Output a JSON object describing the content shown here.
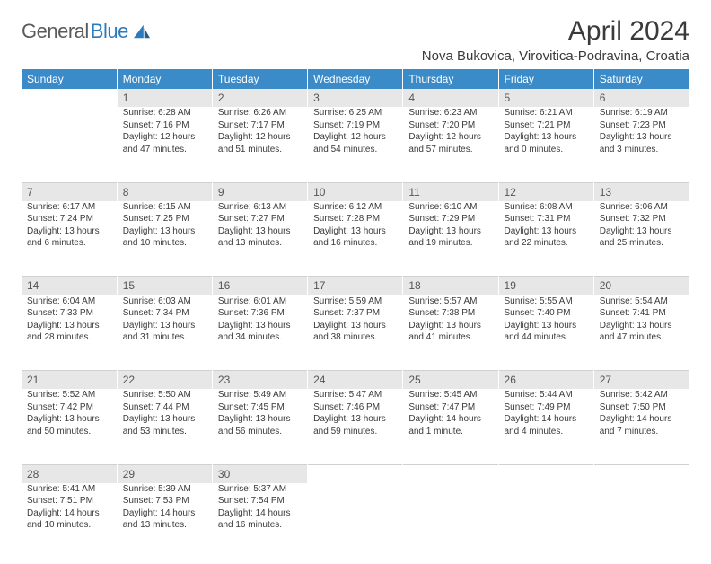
{
  "brand": {
    "name_gray": "General",
    "name_blue": "Blue"
  },
  "title": "April 2024",
  "location": "Nova Bukovica, Virovitica-Podravina, Croatia",
  "colors": {
    "header_bg": "#3b8bc9",
    "header_text": "#ffffff",
    "daynum_bg": "#e7e7e7",
    "text": "#3a3a3a",
    "logo_gray": "#5a5a5a",
    "logo_blue": "#2b7bbd"
  },
  "weekdays": [
    "Sunday",
    "Monday",
    "Tuesday",
    "Wednesday",
    "Thursday",
    "Friday",
    "Saturday"
  ],
  "weeks": [
    [
      null,
      {
        "n": "1",
        "sr": "Sunrise: 6:28 AM",
        "ss": "Sunset: 7:16 PM",
        "d1": "Daylight: 12 hours",
        "d2": "and 47 minutes."
      },
      {
        "n": "2",
        "sr": "Sunrise: 6:26 AM",
        "ss": "Sunset: 7:17 PM",
        "d1": "Daylight: 12 hours",
        "d2": "and 51 minutes."
      },
      {
        "n": "3",
        "sr": "Sunrise: 6:25 AM",
        "ss": "Sunset: 7:19 PM",
        "d1": "Daylight: 12 hours",
        "d2": "and 54 minutes."
      },
      {
        "n": "4",
        "sr": "Sunrise: 6:23 AM",
        "ss": "Sunset: 7:20 PM",
        "d1": "Daylight: 12 hours",
        "d2": "and 57 minutes."
      },
      {
        "n": "5",
        "sr": "Sunrise: 6:21 AM",
        "ss": "Sunset: 7:21 PM",
        "d1": "Daylight: 13 hours",
        "d2": "and 0 minutes."
      },
      {
        "n": "6",
        "sr": "Sunrise: 6:19 AM",
        "ss": "Sunset: 7:23 PM",
        "d1": "Daylight: 13 hours",
        "d2": "and 3 minutes."
      }
    ],
    [
      {
        "n": "7",
        "sr": "Sunrise: 6:17 AM",
        "ss": "Sunset: 7:24 PM",
        "d1": "Daylight: 13 hours",
        "d2": "and 6 minutes."
      },
      {
        "n": "8",
        "sr": "Sunrise: 6:15 AM",
        "ss": "Sunset: 7:25 PM",
        "d1": "Daylight: 13 hours",
        "d2": "and 10 minutes."
      },
      {
        "n": "9",
        "sr": "Sunrise: 6:13 AM",
        "ss": "Sunset: 7:27 PM",
        "d1": "Daylight: 13 hours",
        "d2": "and 13 minutes."
      },
      {
        "n": "10",
        "sr": "Sunrise: 6:12 AM",
        "ss": "Sunset: 7:28 PM",
        "d1": "Daylight: 13 hours",
        "d2": "and 16 minutes."
      },
      {
        "n": "11",
        "sr": "Sunrise: 6:10 AM",
        "ss": "Sunset: 7:29 PM",
        "d1": "Daylight: 13 hours",
        "d2": "and 19 minutes."
      },
      {
        "n": "12",
        "sr": "Sunrise: 6:08 AM",
        "ss": "Sunset: 7:31 PM",
        "d1": "Daylight: 13 hours",
        "d2": "and 22 minutes."
      },
      {
        "n": "13",
        "sr": "Sunrise: 6:06 AM",
        "ss": "Sunset: 7:32 PM",
        "d1": "Daylight: 13 hours",
        "d2": "and 25 minutes."
      }
    ],
    [
      {
        "n": "14",
        "sr": "Sunrise: 6:04 AM",
        "ss": "Sunset: 7:33 PM",
        "d1": "Daylight: 13 hours",
        "d2": "and 28 minutes."
      },
      {
        "n": "15",
        "sr": "Sunrise: 6:03 AM",
        "ss": "Sunset: 7:34 PM",
        "d1": "Daylight: 13 hours",
        "d2": "and 31 minutes."
      },
      {
        "n": "16",
        "sr": "Sunrise: 6:01 AM",
        "ss": "Sunset: 7:36 PM",
        "d1": "Daylight: 13 hours",
        "d2": "and 34 minutes."
      },
      {
        "n": "17",
        "sr": "Sunrise: 5:59 AM",
        "ss": "Sunset: 7:37 PM",
        "d1": "Daylight: 13 hours",
        "d2": "and 38 minutes."
      },
      {
        "n": "18",
        "sr": "Sunrise: 5:57 AM",
        "ss": "Sunset: 7:38 PM",
        "d1": "Daylight: 13 hours",
        "d2": "and 41 minutes."
      },
      {
        "n": "19",
        "sr": "Sunrise: 5:55 AM",
        "ss": "Sunset: 7:40 PM",
        "d1": "Daylight: 13 hours",
        "d2": "and 44 minutes."
      },
      {
        "n": "20",
        "sr": "Sunrise: 5:54 AM",
        "ss": "Sunset: 7:41 PM",
        "d1": "Daylight: 13 hours",
        "d2": "and 47 minutes."
      }
    ],
    [
      {
        "n": "21",
        "sr": "Sunrise: 5:52 AM",
        "ss": "Sunset: 7:42 PM",
        "d1": "Daylight: 13 hours",
        "d2": "and 50 minutes."
      },
      {
        "n": "22",
        "sr": "Sunrise: 5:50 AM",
        "ss": "Sunset: 7:44 PM",
        "d1": "Daylight: 13 hours",
        "d2": "and 53 minutes."
      },
      {
        "n": "23",
        "sr": "Sunrise: 5:49 AM",
        "ss": "Sunset: 7:45 PM",
        "d1": "Daylight: 13 hours",
        "d2": "and 56 minutes."
      },
      {
        "n": "24",
        "sr": "Sunrise: 5:47 AM",
        "ss": "Sunset: 7:46 PM",
        "d1": "Daylight: 13 hours",
        "d2": "and 59 minutes."
      },
      {
        "n": "25",
        "sr": "Sunrise: 5:45 AM",
        "ss": "Sunset: 7:47 PM",
        "d1": "Daylight: 14 hours",
        "d2": "and 1 minute."
      },
      {
        "n": "26",
        "sr": "Sunrise: 5:44 AM",
        "ss": "Sunset: 7:49 PM",
        "d1": "Daylight: 14 hours",
        "d2": "and 4 minutes."
      },
      {
        "n": "27",
        "sr": "Sunrise: 5:42 AM",
        "ss": "Sunset: 7:50 PM",
        "d1": "Daylight: 14 hours",
        "d2": "and 7 minutes."
      }
    ],
    [
      {
        "n": "28",
        "sr": "Sunrise: 5:41 AM",
        "ss": "Sunset: 7:51 PM",
        "d1": "Daylight: 14 hours",
        "d2": "and 10 minutes."
      },
      {
        "n": "29",
        "sr": "Sunrise: 5:39 AM",
        "ss": "Sunset: 7:53 PM",
        "d1": "Daylight: 14 hours",
        "d2": "and 13 minutes."
      },
      {
        "n": "30",
        "sr": "Sunrise: 5:37 AM",
        "ss": "Sunset: 7:54 PM",
        "d1": "Daylight: 14 hours",
        "d2": "and 16 minutes."
      },
      null,
      null,
      null,
      null
    ]
  ]
}
